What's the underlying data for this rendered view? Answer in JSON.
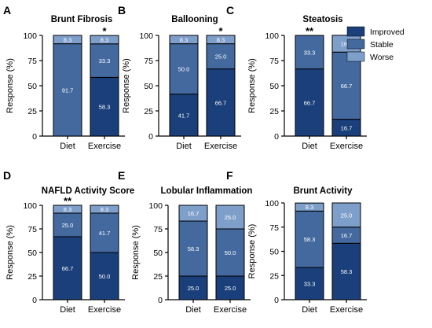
{
  "colors": {
    "improved": "#1a3f7a",
    "stable": "#43699f",
    "worse": "#7f9fcb"
  },
  "legend": [
    {
      "key": "improved",
      "label": "Improved"
    },
    {
      "key": "stable",
      "label": "Stable"
    },
    {
      "key": "worse",
      "label": "Worse"
    }
  ],
  "chart_data": [
    {
      "type": "bar",
      "stacked": true,
      "panel_letter": "A",
      "title": "Brunt Fibrosis",
      "ylabel": "Response (%)",
      "ylim": [
        0,
        100
      ],
      "yticks": [
        "0",
        "25",
        "50",
        "75",
        "100"
      ],
      "categories": [
        "Diet",
        "Exercise"
      ],
      "series": [
        {
          "key": "improved",
          "name": "Improved",
          "values": [
            0,
            58.3
          ],
          "labels": [
            "",
            "58.3"
          ]
        },
        {
          "key": "stable",
          "name": "Stable",
          "values": [
            91.7,
            33.3
          ],
          "labels": [
            "91.7",
            "33.3"
          ]
        },
        {
          "key": "worse",
          "name": "Worse",
          "values": [
            8.3,
            8.3
          ],
          "labels": [
            "8.3",
            "8.3"
          ]
        }
      ],
      "significance": [
        "",
        "*"
      ]
    },
    {
      "type": "bar",
      "stacked": true,
      "panel_letter": "B",
      "title": "Ballooning",
      "ylabel": "Response (%)",
      "ylim": [
        0,
        100
      ],
      "yticks": [
        "0",
        "25",
        "50",
        "75",
        "100"
      ],
      "categories": [
        "Diet",
        "Exercise"
      ],
      "series": [
        {
          "key": "improved",
          "name": "Improved",
          "values": [
            41.7,
            66.7
          ],
          "labels": [
            "41.7",
            "66.7"
          ]
        },
        {
          "key": "stable",
          "name": "Stable",
          "values": [
            50.0,
            25.0
          ],
          "labels": [
            "50.0",
            "25.0"
          ]
        },
        {
          "key": "worse",
          "name": "Worse",
          "values": [
            8.3,
            8.3
          ],
          "labels": [
            "8.3",
            "8.3"
          ]
        }
      ],
      "significance": [
        "",
        "*"
      ]
    },
    {
      "type": "bar",
      "stacked": true,
      "panel_letter": "C",
      "title": "Steatosis",
      "ylabel": "Response (%)",
      "ylim": [
        0,
        100
      ],
      "yticks": [
        "0",
        "25",
        "50",
        "75",
        "100"
      ],
      "categories": [
        "Diet",
        "Exercise"
      ],
      "series": [
        {
          "key": "improved",
          "name": "Improved",
          "values": [
            66.7,
            16.7
          ],
          "labels": [
            "66.7",
            "16.7"
          ]
        },
        {
          "key": "stable",
          "name": "Stable",
          "values": [
            33.3,
            66.7
          ],
          "labels": [
            "33.3",
            "66.7"
          ]
        },
        {
          "key": "worse",
          "name": "Worse",
          "values": [
            0,
            16.7
          ],
          "labels": [
            "",
            "16.7"
          ]
        }
      ],
      "significance": [
        "**",
        ""
      ]
    },
    {
      "type": "bar",
      "stacked": true,
      "panel_letter": "D",
      "title": "NAFLD Activity Score",
      "ylabel": "Response (%)",
      "ylim": [
        0,
        100
      ],
      "yticks": [
        "0",
        "25",
        "50",
        "75",
        "100"
      ],
      "categories": [
        "Diet",
        "Exercise"
      ],
      "series": [
        {
          "key": "improved",
          "name": "Improved",
          "values": [
            66.7,
            50.0
          ],
          "labels": [
            "66.7",
            "50.0"
          ]
        },
        {
          "key": "stable",
          "name": "Stable",
          "values": [
            25.0,
            41.7
          ],
          "labels": [
            "25.0",
            "41.7"
          ]
        },
        {
          "key": "worse",
          "name": "Worse",
          "values": [
            8.3,
            8.3
          ],
          "labels": [
            "8.3",
            "8.3"
          ]
        }
      ],
      "significance": [
        "**",
        ""
      ]
    },
    {
      "type": "bar",
      "stacked": true,
      "panel_letter": "E",
      "title": "Lobular Inflammation",
      "ylabel": "Response (%)",
      "ylim": [
        0,
        100
      ],
      "yticks": [
        "0",
        "25",
        "50",
        "75",
        "100"
      ],
      "categories": [
        "Diet",
        "Exercise"
      ],
      "series": [
        {
          "key": "improved",
          "name": "Improved",
          "values": [
            25.0,
            25.0
          ],
          "labels": [
            "25.0",
            "25.0"
          ]
        },
        {
          "key": "stable",
          "name": "Stable",
          "values": [
            58.3,
            50.0
          ],
          "labels": [
            "58.3",
            "50.0"
          ]
        },
        {
          "key": "worse",
          "name": "Worse",
          "values": [
            16.7,
            25.0
          ],
          "labels": [
            "16.7",
            "25.0"
          ]
        }
      ],
      "significance": [
        "",
        ""
      ]
    },
    {
      "type": "bar",
      "stacked": true,
      "panel_letter": "F",
      "title": "Brunt Activity",
      "ylabel": "Response (%)",
      "ylim": [
        0,
        100
      ],
      "yticks": [
        "0",
        "25",
        "50",
        "75",
        "100"
      ],
      "categories": [
        "Diet",
        "Exercise"
      ],
      "series": [
        {
          "key": "improved",
          "name": "Improved",
          "values": [
            33.3,
            58.3
          ],
          "labels": [
            "33.3",
            "58.3"
          ]
        },
        {
          "key": "stable",
          "name": "Stable",
          "values": [
            58.3,
            16.7
          ],
          "labels": [
            "58.3",
            "16.7"
          ]
        },
        {
          "key": "worse",
          "name": "Worse",
          "values": [
            8.3,
            25.0
          ],
          "labels": [
            "8.3",
            "25.0"
          ]
        }
      ],
      "significance": [
        "",
        ""
      ]
    }
  ]
}
